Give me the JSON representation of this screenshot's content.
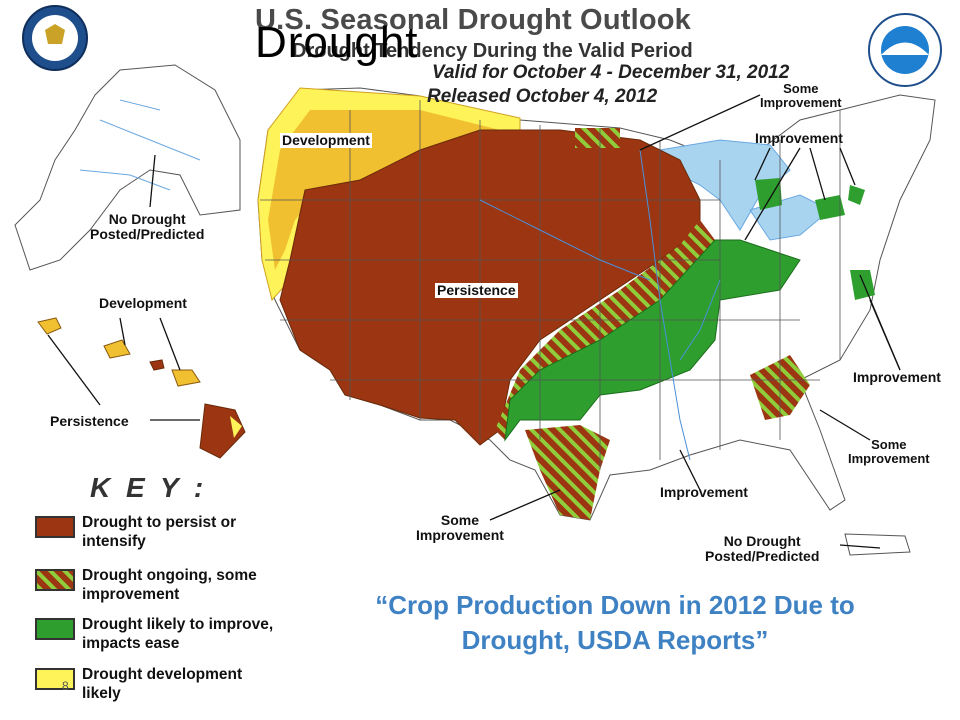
{
  "title": {
    "line1": "U.S. Seasonal Drought Outlook",
    "line2": "Drought Tendency During the Valid Period",
    "line3": "Valid for October 4 - December 31, 2012",
    "line4": "Released October 4, 2012",
    "overlay": "Drought"
  },
  "logos": {
    "left": "department-of-commerce-seal",
    "right": "noaa-logo"
  },
  "map_labels": {
    "development_nw": "Development",
    "persistence": "Persistence",
    "no_drought_ak": "No Drought\nPosted/Predicted",
    "development_hi": "Development",
    "persistence_hi": "Persistence",
    "some_improvement_top": "Some\nImprovement",
    "improvement_top": "Improvement",
    "improvement_east": "Improvement",
    "some_improvement_se": "Some\nImprovement",
    "improvement_south": "Improvement",
    "some_improvement_tx": "Some\nImprovement",
    "no_drought_pr": "No Drought\nPosted/Predicted"
  },
  "key": {
    "title": "K E Y :",
    "items": [
      {
        "label": "Drought to persist or\nintensify",
        "color": "#9b3512",
        "pattern": "solid"
      },
      {
        "label": "Drought ongoing, some\nimprovement",
        "color": "#9b3512",
        "pattern": "hatch-green"
      },
      {
        "label": "Drought likely to improve,\nimpacts ease",
        "color": "#2e9e2e",
        "pattern": "solid"
      },
      {
        "label": "Drought development\nlikely",
        "color": "#fff35a",
        "pattern": "solid"
      }
    ]
  },
  "caption": {
    "open_quote": "“",
    "text": "Crop Production Down in 2012 Due to Drought, USDA Reports",
    "close_quote": "”"
  },
  "slide_number": "8",
  "colors": {
    "persist": "#9b3512",
    "improve": "#2e9e2e",
    "develop_light": "#fff35a",
    "develop_dark": "#f0c030",
    "water": "#a8d4f0",
    "caption": "#3f82c4"
  }
}
